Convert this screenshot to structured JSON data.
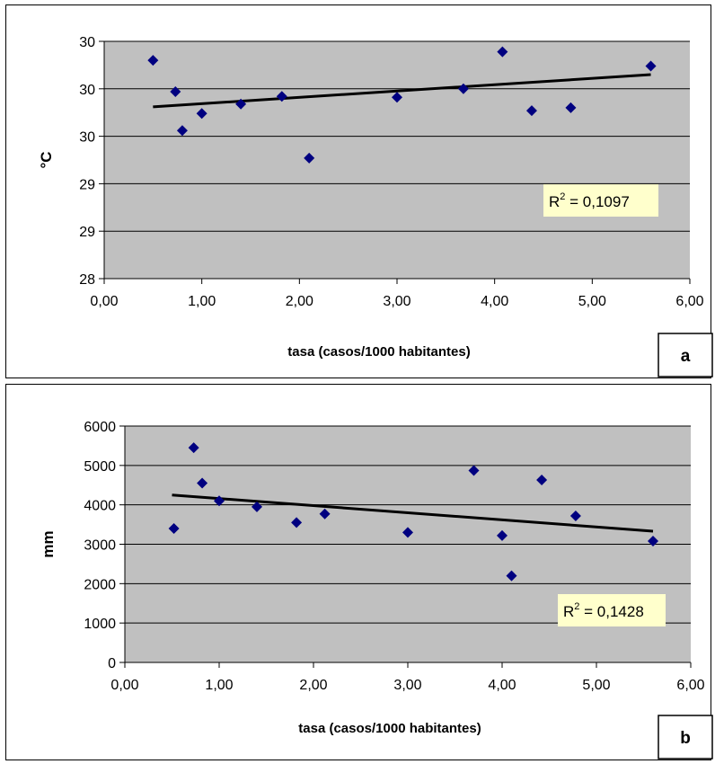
{
  "chart_data": [
    {
      "type": "scatter",
      "panel_label": "a",
      "xlabel": "tasa (casos/1000 habitantes)",
      "ylabel": "°C",
      "xlim": [
        0,
        6
      ],
      "ylim": [
        28,
        30.5
      ],
      "x_ticks": [
        0,
        1,
        2,
        3,
        4,
        5,
        6
      ],
      "x_tick_labels": [
        "0,00",
        "1,00",
        "2,00",
        "3,00",
        "4,00",
        "5,00",
        "6,00"
      ],
      "y_ticks": [
        28,
        28.5,
        29,
        29.5,
        30,
        30.5
      ],
      "y_tick_labels": [
        "28",
        "29",
        "29",
        "30",
        "30",
        "30"
      ],
      "grid": true,
      "r2_label": "R",
      "r2_exp": "2",
      "r2_value": " = 0,1097",
      "points": [
        {
          "x": 0.5,
          "y": 30.3
        },
        {
          "x": 0.73,
          "y": 29.97
        },
        {
          "x": 0.8,
          "y": 29.56
        },
        {
          "x": 1.0,
          "y": 29.74
        },
        {
          "x": 1.4,
          "y": 29.84
        },
        {
          "x": 1.82,
          "y": 29.92
        },
        {
          "x": 2.1,
          "y": 29.27
        },
        {
          "x": 3.0,
          "y": 29.91
        },
        {
          "x": 3.68,
          "y": 30.0
        },
        {
          "x": 4.08,
          "y": 30.39
        },
        {
          "x": 4.38,
          "y": 29.77
        },
        {
          "x": 4.78,
          "y": 29.8
        },
        {
          "x": 5.6,
          "y": 30.24
        }
      ],
      "trendline": {
        "x": [
          0.5,
          5.6
        ],
        "y": [
          29.81,
          30.15
        ]
      }
    },
    {
      "type": "scatter",
      "panel_label": "b",
      "xlabel": "tasa (casos/1000 habitantes)",
      "ylabel": "mm",
      "xlim": [
        0,
        6
      ],
      "ylim": [
        0,
        6000
      ],
      "x_ticks": [
        0,
        1,
        2,
        3,
        4,
        5,
        6
      ],
      "x_tick_labels": [
        "0,00",
        "1,00",
        "2,00",
        "3,00",
        "4,00",
        "5,00",
        "6,00"
      ],
      "y_ticks": [
        0,
        1000,
        2000,
        3000,
        4000,
        5000,
        6000
      ],
      "y_tick_labels": [
        "0",
        "1000",
        "2000",
        "3000",
        "4000",
        "5000",
        "6000"
      ],
      "grid": true,
      "r2_label": "R",
      "r2_exp": "2",
      "r2_value": " = 0,1428",
      "points": [
        {
          "x": 0.52,
          "y": 3400
        },
        {
          "x": 0.73,
          "y": 5450
        },
        {
          "x": 0.82,
          "y": 4550
        },
        {
          "x": 1.0,
          "y": 4100
        },
        {
          "x": 1.4,
          "y": 3950
        },
        {
          "x": 1.82,
          "y": 3550
        },
        {
          "x": 2.12,
          "y": 3770
        },
        {
          "x": 3.0,
          "y": 3300
        },
        {
          "x": 3.7,
          "y": 4870
        },
        {
          "x": 4.0,
          "y": 3220
        },
        {
          "x": 4.1,
          "y": 2200
        },
        {
          "x": 4.42,
          "y": 4630
        },
        {
          "x": 4.78,
          "y": 3720
        },
        {
          "x": 5.6,
          "y": 3080
        }
      ],
      "trendline": {
        "x": [
          0.5,
          5.6
        ],
        "y": [
          4250,
          3330
        ]
      }
    }
  ],
  "colors": {
    "plot_bg": "#c0c0c0",
    "marker": "#000080",
    "r2_box": "#ffffcc",
    "trendline": "#000000"
  }
}
